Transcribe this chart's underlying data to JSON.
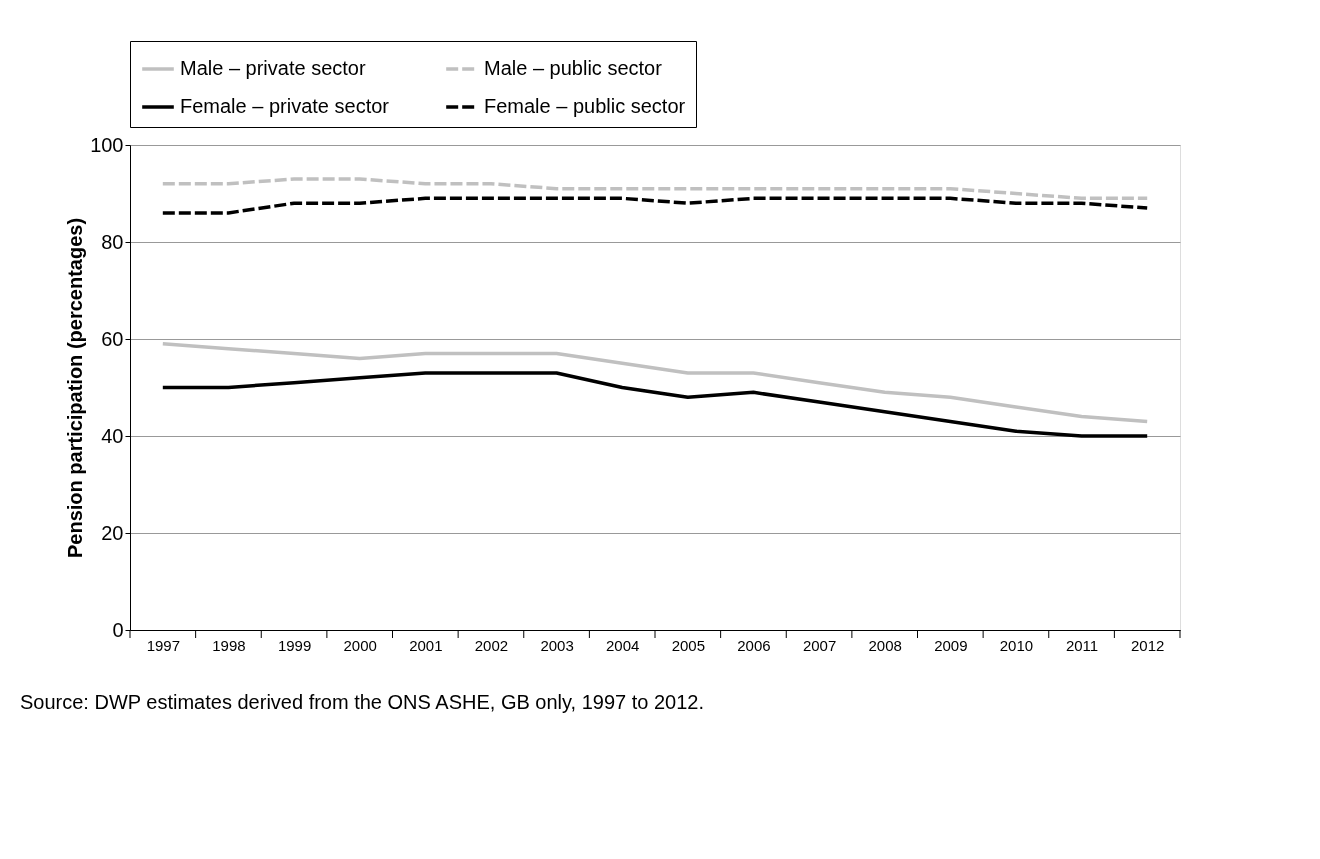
{
  "chart_data": {
    "type": "line",
    "ylabel": "Pension participation (percentages)",
    "categories": [
      "1997",
      "1998",
      "1999",
      "2000",
      "2001",
      "2002",
      "2003",
      "2004",
      "2005",
      "2006",
      "2007",
      "2008",
      "2009",
      "2010",
      "2011",
      "2012"
    ],
    "series": [
      {
        "name": "Male – private sector",
        "color": "#c0c0c0",
        "line_style": "solid",
        "values": [
          59,
          58,
          57,
          56,
          57,
          57,
          57,
          55,
          53,
          53,
          51,
          49,
          48,
          46,
          44,
          43
        ]
      },
      {
        "name": "Male – public sector",
        "color": "#c0c0c0",
        "line_style": "dashed",
        "values": [
          92,
          92,
          93,
          93,
          92,
          92,
          91,
          91,
          91,
          91,
          91,
          91,
          91,
          90,
          89,
          89
        ]
      },
      {
        "name": "Female – private sector",
        "color": "#000000",
        "line_style": "solid",
        "values": [
          50,
          50,
          51,
          52,
          53,
          53,
          53,
          50,
          48,
          49,
          47,
          45,
          43,
          41,
          40,
          40
        ]
      },
      {
        "name": "Female – public sector",
        "color": "#000000",
        "line_style": "dashed",
        "values": [
          86,
          86,
          88,
          88,
          89,
          89,
          89,
          89,
          88,
          89,
          89,
          89,
          89,
          88,
          88,
          87
        ]
      }
    ],
    "ylim": [
      0,
      100
    ],
    "yticks": [
      0,
      20,
      40,
      60,
      80,
      100
    ],
    "grid": "y",
    "legend": "top",
    "annotations": [
      "Source: DWP estimates derived from the ONS ASHE, GB only, 1997 to 2012."
    ]
  }
}
